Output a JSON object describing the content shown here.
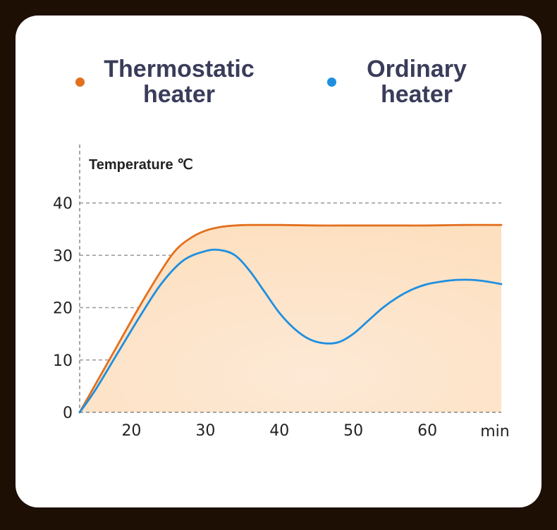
{
  "legend": [
    {
      "label": "Thermostatic heater",
      "line1": "Thermostatic",
      "line2": "heater",
      "color": "#e2701f"
    },
    {
      "label": "Ordinary heater",
      "line1": "Ordinary",
      "line2": "heater",
      "color": "#1e8fe0"
    }
  ],
  "colors": {
    "background": "#1e0f05",
    "card": "#ffffff",
    "fill": "#fde6cc",
    "grid": "#999999",
    "axis": "#888888"
  },
  "chart_data": {
    "type": "line",
    "title": "",
    "xlabel": "min",
    "ylabel": "Temperature ℃",
    "xlim": [
      13,
      70
    ],
    "ylim": [
      0,
      40
    ],
    "x_ticks": [
      20,
      30,
      40,
      50,
      60
    ],
    "y_ticks": [
      0,
      10,
      20,
      30,
      40
    ],
    "grid": "horizontal dashed",
    "series": [
      {
        "name": "Thermostatic heater",
        "color": "#e2701f",
        "fill": true,
        "x": [
          13,
          15,
          18,
          21,
          24,
          26,
          28,
          30,
          32,
          34,
          36,
          40,
          45,
          50,
          55,
          60,
          65,
          70
        ],
        "y": [
          0,
          5,
          12.5,
          20,
          27,
          31,
          33.3,
          34.7,
          35.4,
          35.7,
          35.8,
          35.8,
          35.7,
          35.7,
          35.7,
          35.7,
          35.8,
          35.8
        ]
      },
      {
        "name": "Ordinary heater",
        "color": "#1e8fe0",
        "fill": false,
        "x": [
          13,
          15,
          18,
          21,
          24,
          27,
          30,
          32,
          34,
          36,
          38,
          40,
          42,
          44,
          46,
          48,
          50,
          52,
          54,
          56,
          58,
          60,
          62,
          64,
          66,
          68,
          70
        ],
        "y": [
          0,
          4,
          11,
          18,
          24.5,
          29,
          30.8,
          31,
          30,
          27,
          23,
          19,
          16,
          14,
          13.2,
          13.4,
          15,
          17.5,
          20,
          22,
          23.5,
          24.5,
          25,
          25.3,
          25.3,
          25,
          24.5
        ]
      }
    ]
  }
}
